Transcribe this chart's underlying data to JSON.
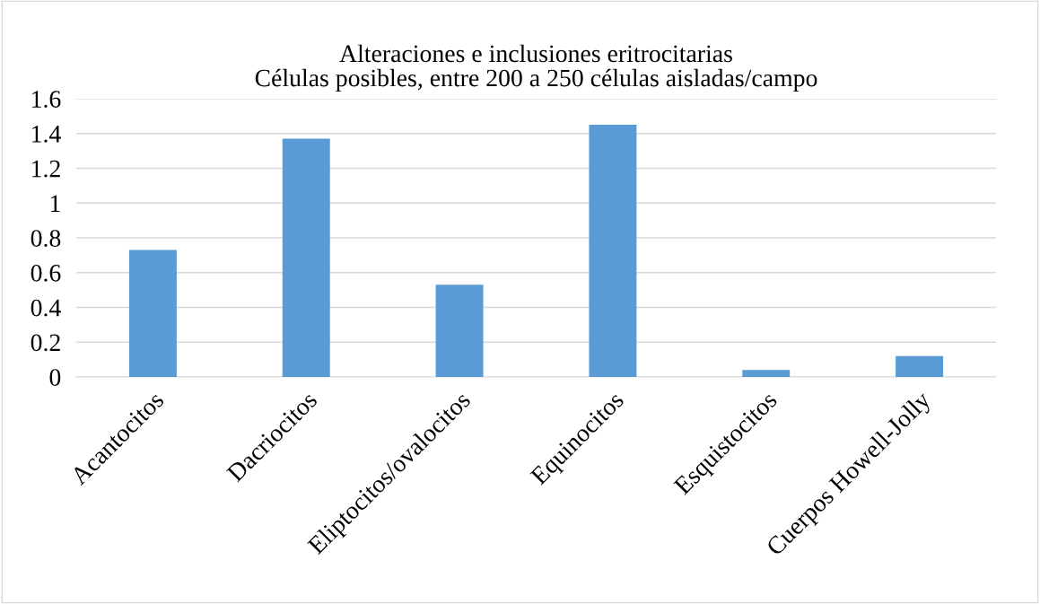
{
  "chart_data": {
    "type": "bar",
    "title": "Alteraciones e inclusiones eritrocitarias\nCélulas posibles, entre 200 a 250 células aisladas/campo",
    "categories": [
      "Acantocitos",
      "Dacriocitos",
      "Eliptocitos/ovalocitos",
      "Equinocitos",
      "Esquistocitos",
      "Cuerpos Howell-Jolly"
    ],
    "values": [
      0.73,
      1.37,
      0.53,
      1.45,
      0.04,
      0.12
    ],
    "color": "#5b9bd5",
    "ylim": [
      0,
      1.6
    ],
    "yticks": [
      0,
      0.2,
      0.4,
      0.6,
      0.8,
      1,
      1.2,
      1.4,
      1.6
    ],
    "grid": "y"
  }
}
